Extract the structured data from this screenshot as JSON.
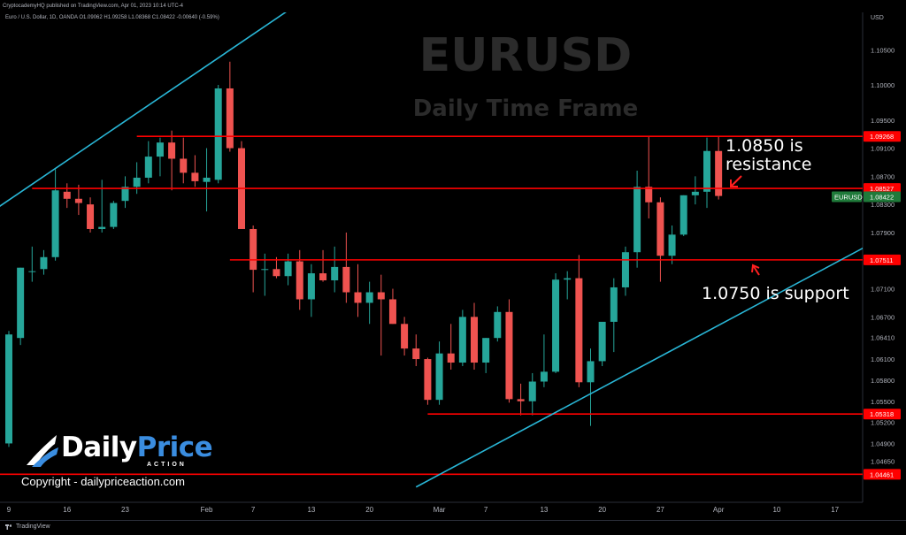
{
  "header": {
    "publisher_line": "CryptocademyHQ published on TradingView.com, Apr 01, 2023 10:14 UTC-4",
    "symbol_line": "Euro / U.S. Dollar, 1D, OANDA O1.09062 H1.09258 L1.08368 C1.08422 -0.00640 (-0.59%)",
    "currency": "USD"
  },
  "footer": {
    "brand": "TradingView"
  },
  "watermark": {
    "title": "EURUSD",
    "subtitle": "Daily Time Frame"
  },
  "logo": {
    "part1": "Daily",
    "part2": "Price",
    "tagline": "ACTION",
    "copyright": "Copyright - dailypriceaction.com"
  },
  "annotations": {
    "resistance_line1": "1.0850 is",
    "resistance_line2": "resistance",
    "support": "1.0750 is support"
  },
  "colors": {
    "up": "#26a69a",
    "down": "#ef5350",
    "level": "#ff0000",
    "channel": "#29b6d6",
    "background": "#000000",
    "symbol_tag": "#1f7a3a"
  },
  "chart_data": {
    "type": "candlestick",
    "symbol": "EURUSD",
    "ylim": [
      1.0425,
      1.1075
    ],
    "y_ticks": [
      "1.10500",
      "1.10000",
      "1.09500",
      "1.09100",
      "1.08700",
      "1.08300",
      "1.07900",
      "1.07500",
      "1.07100",
      "1.06700",
      "1.06410",
      "1.06100",
      "1.05800",
      "1.05500",
      "1.05200",
      "1.04900",
      "1.04650",
      "1.04450"
    ],
    "x_ticks": [
      {
        "label": "9",
        "index": 0
      },
      {
        "label": "16",
        "index": 5
      },
      {
        "label": "23",
        "index": 10
      },
      {
        "label": "Feb",
        "index": 17
      },
      {
        "label": "7",
        "index": 21
      },
      {
        "label": "13",
        "index": 26
      },
      {
        "label": "20",
        "index": 31
      },
      {
        "label": "Mar",
        "index": 37
      },
      {
        "label": "7",
        "index": 41
      },
      {
        "label": "13",
        "index": 46
      },
      {
        "label": "20",
        "index": 51
      },
      {
        "label": "27",
        "index": 56
      },
      {
        "label": "Apr",
        "index": 61
      },
      {
        "label": "10",
        "index": 66
      },
      {
        "label": "17",
        "index": 71
      }
    ],
    "candles": [
      {
        "o": 1.049,
        "h": 1.065,
        "l": 1.0485,
        "c": 1.0645
      },
      {
        "o": 1.064,
        "h": 1.074,
        "l": 1.063,
        "c": 1.074
      },
      {
        "o": 1.0735,
        "h": 1.077,
        "l": 1.072,
        "c": 1.0735
      },
      {
        "o": 1.0738,
        "h": 1.0765,
        "l": 1.073,
        "c": 1.0755
      },
      {
        "o": 1.0755,
        "h": 1.088,
        "l": 1.075,
        "c": 1.085
      },
      {
        "o": 1.0848,
        "h": 1.086,
        "l": 1.0825,
        "c": 1.0838
      },
      {
        "o": 1.0838,
        "h": 1.0858,
        "l": 1.0815,
        "c": 1.0832
      },
      {
        "o": 1.083,
        "h": 1.084,
        "l": 1.079,
        "c": 1.0795
      },
      {
        "o": 1.0795,
        "h": 1.0865,
        "l": 1.079,
        "c": 1.0798
      },
      {
        "o": 1.0798,
        "h": 1.0835,
        "l": 1.0795,
        "c": 1.0832
      },
      {
        "o": 1.0835,
        "h": 1.087,
        "l": 1.0825,
        "c": 1.0855
      },
      {
        "o": 1.0855,
        "h": 1.089,
        "l": 1.0845,
        "c": 1.0868
      },
      {
        "o": 1.0868,
        "h": 1.092,
        "l": 1.086,
        "c": 1.0898
      },
      {
        "o": 1.0898,
        "h": 1.0925,
        "l": 1.087,
        "c": 1.0918
      },
      {
        "o": 1.0918,
        "h": 1.0935,
        "l": 1.085,
        "c": 1.0895
      },
      {
        "o": 1.0895,
        "h": 1.0925,
        "l": 1.086,
        "c": 1.0875
      },
      {
        "o": 1.0875,
        "h": 1.09,
        "l": 1.0855,
        "c": 1.0863
      },
      {
        "o": 1.0862,
        "h": 1.091,
        "l": 1.082,
        "c": 1.0868
      },
      {
        "o": 1.0865,
        "h": 1.1,
        "l": 1.086,
        "c": 1.0995
      },
      {
        "o": 1.0995,
        "h": 1.1033,
        "l": 1.0905,
        "c": 1.091
      },
      {
        "o": 1.091,
        "h": 1.092,
        "l": 1.0795,
        "c": 1.0795
      },
      {
        "o": 1.0795,
        "h": 1.08,
        "l": 1.0705,
        "c": 1.0737
      },
      {
        "o": 1.0737,
        "h": 1.076,
        "l": 1.07,
        "c": 1.0738
      },
      {
        "o": 1.0738,
        "h": 1.0755,
        "l": 1.0725,
        "c": 1.0728
      },
      {
        "o": 1.0728,
        "h": 1.076,
        "l": 1.0715,
        "c": 1.0749
      },
      {
        "o": 1.0749,
        "h": 1.0765,
        "l": 1.068,
        "c": 1.0695
      },
      {
        "o": 1.0695,
        "h": 1.0745,
        "l": 1.067,
        "c": 1.0732
      },
      {
        "o": 1.0732,
        "h": 1.0765,
        "l": 1.072,
        "c": 1.0722
      },
      {
        "o": 1.0722,
        "h": 1.077,
        "l": 1.0705,
        "c": 1.0741
      },
      {
        "o": 1.0741,
        "h": 1.079,
        "l": 1.069,
        "c": 1.0705
      },
      {
        "o": 1.0705,
        "h": 1.0745,
        "l": 1.067,
        "c": 1.069
      },
      {
        "o": 1.069,
        "h": 1.072,
        "l": 1.066,
        "c": 1.0705
      },
      {
        "o": 1.0705,
        "h": 1.073,
        "l": 1.0615,
        "c": 1.0695
      },
      {
        "o": 1.0695,
        "h": 1.071,
        "l": 1.066,
        "c": 1.066
      },
      {
        "o": 1.066,
        "h": 1.067,
        "l": 1.0615,
        "c": 1.0625
      },
      {
        "o": 1.0625,
        "h": 1.0645,
        "l": 1.06,
        "c": 1.061
      },
      {
        "o": 1.061,
        "h": 1.0612,
        "l": 1.0545,
        "c": 1.0552
      },
      {
        "o": 1.0552,
        "h": 1.0635,
        "l": 1.0545,
        "c": 1.0618
      },
      {
        "o": 1.0618,
        "h": 1.066,
        "l": 1.0595,
        "c": 1.0605
      },
      {
        "o": 1.0605,
        "h": 1.068,
        "l": 1.06,
        "c": 1.067
      },
      {
        "o": 1.067,
        "h": 1.069,
        "l": 1.0595,
        "c": 1.0605
      },
      {
        "o": 1.0605,
        "h": 1.064,
        "l": 1.059,
        "c": 1.064
      },
      {
        "o": 1.064,
        "h": 1.0685,
        "l": 1.0635,
        "c": 1.0677
      },
      {
        "o": 1.0677,
        "h": 1.0695,
        "l": 1.0548,
        "c": 1.0553
      },
      {
        "o": 1.0553,
        "h": 1.0575,
        "l": 1.053,
        "c": 1.055
      },
      {
        "o": 1.055,
        "h": 1.059,
        "l": 1.053,
        "c": 1.0578
      },
      {
        "o": 1.0578,
        "h": 1.0645,
        "l": 1.057,
        "c": 1.0592
      },
      {
        "o": 1.0592,
        "h": 1.0732,
        "l": 1.059,
        "c": 1.0723
      },
      {
        "o": 1.0723,
        "h": 1.0735,
        "l": 1.0695,
        "c": 1.0725
      },
      {
        "o": 1.0725,
        "h": 1.0758,
        "l": 1.057,
        "c": 1.0577
      },
      {
        "o": 1.0577,
        "h": 1.0625,
        "l": 1.0515,
        "c": 1.0607
      },
      {
        "o": 1.0607,
        "h": 1.066,
        "l": 1.06,
        "c": 1.0663
      },
      {
        "o": 1.0663,
        "h": 1.0725,
        "l": 1.062,
        "c": 1.0712
      },
      {
        "o": 1.0712,
        "h": 1.077,
        "l": 1.07,
        "c": 1.0762
      },
      {
        "o": 1.0762,
        "h": 1.0878,
        "l": 1.074,
        "c": 1.0855
      },
      {
        "o": 1.0855,
        "h": 1.0926,
        "l": 1.081,
        "c": 1.0833
      },
      {
        "o": 1.0833,
        "h": 1.084,
        "l": 1.072,
        "c": 1.0757
      },
      {
        "o": 1.0757,
        "h": 1.08,
        "l": 1.0745,
        "c": 1.0787
      },
      {
        "o": 1.0787,
        "h": 1.0843,
        "l": 1.0785,
        "c": 1.0843
      },
      {
        "o": 1.0843,
        "h": 1.087,
        "l": 1.083,
        "c": 1.0848
      },
      {
        "o": 1.0848,
        "h": 1.0925,
        "l": 1.0825,
        "c": 1.0906
      },
      {
        "o": 1.0906,
        "h": 1.0926,
        "l": 1.0837,
        "c": 1.0842
      }
    ],
    "levels": [
      {
        "price": 1.09268,
        "label": "1.09268",
        "from_index": 11
      },
      {
        "price": 1.08527,
        "label": "1.08527",
        "from_index": 2
      },
      {
        "price": 1.07511,
        "label": "1.07511",
        "from_index": 19
      },
      {
        "price": 1.05318,
        "label": "1.05318",
        "from_index": 36
      },
      {
        "price": 1.04461,
        "label": "1.04461",
        "from_index": -2
      }
    ],
    "last_price": {
      "symbol": "EURUSD",
      "label": "1.08422",
      "price": 1.08422
    },
    "channel_lines": [
      {
        "x1": -1.0,
        "y1": 1.0825,
        "x2": 31.5,
        "y2": 1.119
      },
      {
        "x1": 35.0,
        "y1": 1.0428,
        "x2": 77.5,
        "y2": 1.0804
      }
    ]
  }
}
